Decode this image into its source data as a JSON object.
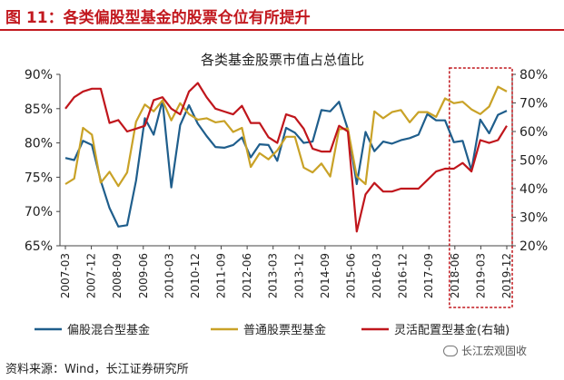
{
  "figure": {
    "label": "图 11：各类偏股型基金的股票仓位有所提升",
    "source": "资料来源：Wind，长江证券研究所",
    "watermark": "长江宏观固收"
  },
  "chart_data": {
    "type": "line",
    "title": "各类基金股票市值占总值比",
    "x_tick_labels": [
      "2007-03",
      "2007-12",
      "2008-09",
      "2009-06",
      "2010-03",
      "2010-12",
      "2011-09",
      "2012-06",
      "2013-03",
      "2013-12",
      "2014-09",
      "2015-06",
      "2016-03",
      "2016-12",
      "2017-09",
      "2018-06",
      "2019-03",
      "2019-12"
    ],
    "ylim_left": [
      0.65,
      0.9
    ],
    "ylim_right": [
      0.2,
      0.8
    ],
    "y_ticks_left": [
      "65%",
      "70%",
      "75%",
      "80%",
      "85%",
      "90%"
    ],
    "y_ticks_right": [
      "20%",
      "30%",
      "40%",
      "50%",
      "60%",
      "70%",
      "80%"
    ],
    "grid": false,
    "legend_position": "bottom",
    "highlight_box_last_periods": 2,
    "colors": {
      "series_0": "#1f5e8c",
      "series_1": "#c9a227",
      "series_2": "#c0161c",
      "highlight_box": "#c0161c",
      "axis": "#444444"
    },
    "series": [
      {
        "name": "偏股混合型基金",
        "axis": "left",
        "values": [
          0.778,
          0.775,
          0.803,
          0.797,
          0.745,
          0.705,
          0.678,
          0.68,
          0.745,
          0.836,
          0.812,
          0.862,
          0.735,
          0.826,
          0.855,
          0.828,
          0.81,
          0.794,
          0.793,
          0.797,
          0.808,
          0.779,
          0.798,
          0.797,
          0.774,
          0.822,
          0.815,
          0.8,
          0.802,
          0.848,
          0.846,
          0.86,
          0.82,
          0.74,
          0.816,
          0.788,
          0.802,
          0.799,
          0.804,
          0.807,
          0.812,
          0.842,
          0.833,
          0.833,
          0.801,
          0.803,
          0.76,
          0.834,
          0.814,
          0.841,
          0.847
        ]
      },
      {
        "name": "普通股票型基金",
        "axis": "left",
        "values": [
          0.74,
          0.748,
          0.822,
          0.812,
          0.742,
          0.758,
          0.737,
          0.757,
          0.831,
          0.856,
          0.846,
          0.862,
          0.833,
          0.858,
          0.842,
          0.834,
          0.836,
          0.83,
          0.832,
          0.816,
          0.822,
          0.765,
          0.785,
          0.776,
          0.789,
          0.809,
          0.809,
          0.764,
          0.757,
          0.77,
          0.751,
          0.82,
          0.821,
          0.751,
          0.74,
          0.846,
          0.836,
          0.845,
          0.848,
          0.83,
          0.845,
          0.845,
          0.838,
          0.865,
          0.858,
          0.86,
          0.849,
          0.842,
          0.853,
          0.882,
          0.875
        ]
      },
      {
        "name": "灵活配置型基金(右轴)",
        "axis": "right",
        "values": [
          0.68,
          0.72,
          0.74,
          0.75,
          0.75,
          0.63,
          0.64,
          0.6,
          0.61,
          0.62,
          0.71,
          0.72,
          0.68,
          0.66,
          0.74,
          0.77,
          0.72,
          0.68,
          0.67,
          0.66,
          0.69,
          0.63,
          0.63,
          0.58,
          0.56,
          0.66,
          0.65,
          0.61,
          0.54,
          0.53,
          0.53,
          0.62,
          0.6,
          0.25,
          0.38,
          0.42,
          0.39,
          0.39,
          0.4,
          0.4,
          0.4,
          0.43,
          0.46,
          0.47,
          0.47,
          0.49,
          0.46,
          0.57,
          0.56,
          0.57,
          0.62
        ]
      }
    ]
  }
}
